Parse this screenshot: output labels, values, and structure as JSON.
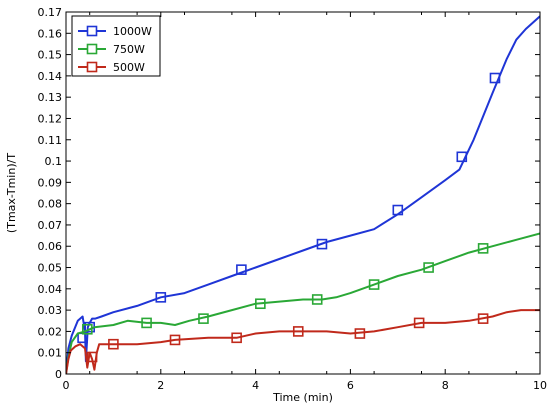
{
  "chart_data": {
    "type": "line",
    "title": "",
    "xlabel": "Time (min)",
    "ylabel": "(Tmax-Tmin)/T",
    "xlim": [
      0,
      10
    ],
    "ylim": [
      0,
      0.17
    ],
    "x_ticks": [
      0,
      2,
      4,
      6,
      8,
      10
    ],
    "y_ticks": [
      0,
      0.01,
      0.02,
      0.03,
      0.04,
      0.05,
      0.06,
      0.07,
      0.08,
      0.09,
      0.1,
      0.11,
      0.12,
      0.13,
      0.14,
      0.15,
      0.16,
      0.17
    ],
    "grid": false,
    "legend_position": "top-left",
    "series": [
      {
        "name": "1000W",
        "color": "#1f35d6",
        "marker": "square",
        "points": [
          [
            0,
            0
          ],
          [
            0.05,
            0.012
          ],
          [
            0.12,
            0.018
          ],
          [
            0.25,
            0.025
          ],
          [
            0.35,
            0.027
          ],
          [
            0.4,
            0.02
          ],
          [
            0.42,
            0.006
          ],
          [
            0.46,
            0.022
          ],
          [
            0.5,
            0.024
          ],
          [
            0.55,
            0.026
          ],
          [
            0.62,
            0.026
          ],
          [
            0.75,
            0.027
          ],
          [
            1,
            0.029
          ],
          [
            1.5,
            0.032
          ],
          [
            2,
            0.036
          ],
          [
            2.5,
            0.038
          ],
          [
            3,
            0.042
          ],
          [
            3.5,
            0.046
          ],
          [
            4,
            0.05
          ],
          [
            4.5,
            0.054
          ],
          [
            5,
            0.058
          ],
          [
            5.5,
            0.062
          ],
          [
            6,
            0.065
          ],
          [
            6.5,
            0.068
          ],
          [
            7,
            0.075
          ],
          [
            7.5,
            0.083
          ],
          [
            8,
            0.091
          ],
          [
            8.3,
            0.096
          ],
          [
            8.6,
            0.11
          ],
          [
            9,
            0.132
          ],
          [
            9.3,
            0.148
          ],
          [
            9.5,
            0.157
          ],
          [
            9.7,
            0.162
          ],
          [
            10,
            0.168
          ]
        ],
        "marker_points": [
          [
            0.35,
            0.017
          ],
          [
            0.5,
            0.022
          ],
          [
            2,
            0.036
          ],
          [
            3.7,
            0.049
          ],
          [
            5.4,
            0.061
          ],
          [
            7,
            0.077
          ],
          [
            8.35,
            0.102
          ],
          [
            9.05,
            0.139
          ]
        ]
      },
      {
        "name": "750W",
        "color": "#2aa836",
        "marker": "square",
        "points": [
          [
            0,
            0
          ],
          [
            0.05,
            0.008
          ],
          [
            0.12,
            0.015
          ],
          [
            0.25,
            0.019
          ],
          [
            0.4,
            0.02
          ],
          [
            0.5,
            0.021
          ],
          [
            0.6,
            0.022
          ],
          [
            1,
            0.023
          ],
          [
            1.3,
            0.025
          ],
          [
            1.7,
            0.024
          ],
          [
            2,
            0.024
          ],
          [
            2.3,
            0.023
          ],
          [
            2.6,
            0.025
          ],
          [
            3,
            0.027
          ],
          [
            3.5,
            0.03
          ],
          [
            4,
            0.033
          ],
          [
            4.5,
            0.034
          ],
          [
            5,
            0.035
          ],
          [
            5.4,
            0.035
          ],
          [
            5.7,
            0.036
          ],
          [
            6,
            0.038
          ],
          [
            6.5,
            0.042
          ],
          [
            7,
            0.046
          ],
          [
            7.5,
            0.049
          ],
          [
            8,
            0.053
          ],
          [
            8.5,
            0.057
          ],
          [
            9,
            0.06
          ],
          [
            9.5,
            0.063
          ],
          [
            10,
            0.066
          ]
        ],
        "marker_points": [
          [
            0.45,
            0.021
          ],
          [
            1.7,
            0.024
          ],
          [
            2.9,
            0.026
          ],
          [
            4.1,
            0.033
          ],
          [
            5.3,
            0.035
          ],
          [
            6.5,
            0.042
          ],
          [
            7.65,
            0.05
          ],
          [
            8.8,
            0.059
          ]
        ]
      },
      {
        "name": "500W",
        "color": "#c0291b",
        "marker": "square",
        "points": [
          [
            0,
            0
          ],
          [
            0.05,
            0.007
          ],
          [
            0.1,
            0.011
          ],
          [
            0.2,
            0.013
          ],
          [
            0.3,
            0.014
          ],
          [
            0.4,
            0.012
          ],
          [
            0.45,
            0.003
          ],
          [
            0.5,
            0.01
          ],
          [
            0.55,
            0.007
          ],
          [
            0.6,
            0.002
          ],
          [
            0.65,
            0.01
          ],
          [
            0.7,
            0.014
          ],
          [
            1,
            0.014
          ],
          [
            1.5,
            0.014
          ],
          [
            2,
            0.015
          ],
          [
            2.3,
            0.016
          ],
          [
            3,
            0.017
          ],
          [
            3.6,
            0.017
          ],
          [
            4,
            0.019
          ],
          [
            4.5,
            0.02
          ],
          [
            5,
            0.02
          ],
          [
            5.5,
            0.02
          ],
          [
            6,
            0.019
          ],
          [
            6.5,
            0.02
          ],
          [
            7,
            0.022
          ],
          [
            7.5,
            0.024
          ],
          [
            8,
            0.024
          ],
          [
            8.5,
            0.025
          ],
          [
            9,
            0.027
          ],
          [
            9.3,
            0.029
          ],
          [
            9.6,
            0.03
          ],
          [
            10,
            0.03
          ]
        ],
        "marker_points": [
          [
            0.55,
            0.008
          ],
          [
            1.0,
            0.014
          ],
          [
            2.3,
            0.016
          ],
          [
            3.6,
            0.017
          ],
          [
            4.9,
            0.02
          ],
          [
            6.2,
            0.019
          ],
          [
            7.45,
            0.024
          ],
          [
            8.8,
            0.026
          ]
        ]
      }
    ]
  }
}
